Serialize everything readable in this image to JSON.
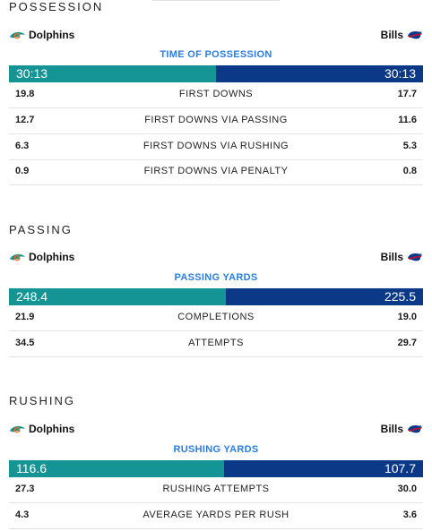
{
  "teams": {
    "left": "Dolphins",
    "right": "Bills"
  },
  "colors": {
    "dolphins": "#149494",
    "bills": "#0b3887",
    "accent": "#2a7ee0"
  },
  "possession": {
    "title": "POSSESSION",
    "metric": {
      "label": "TIME OF POSSESSION",
      "left": "30:13",
      "right": "30:13",
      "left_share": 0.5
    },
    "rows": [
      {
        "label": "FIRST DOWNS",
        "left": "19.8",
        "right": "17.7"
      },
      {
        "label": "FIRST DOWNS VIA PASSING",
        "left": "12.7",
        "right": "11.6"
      },
      {
        "label": "FIRST DOWNS VIA RUSHING",
        "left": "6.3",
        "right": "5.3"
      },
      {
        "label": "FIRST DOWNS VIA PENALTY",
        "left": "0.9",
        "right": "0.8"
      }
    ]
  },
  "passing": {
    "title": "PASSING",
    "metric": {
      "label": "PASSING YARDS",
      "left": "248.4",
      "right": "225.5",
      "left_share": 0.524
    },
    "rows": [
      {
        "label": "COMPLETIONS",
        "left": "21.9",
        "right": "19.0"
      },
      {
        "label": "ATTEMPTS",
        "left": "34.5",
        "right": "29.7"
      }
    ]
  },
  "rushing": {
    "title": "RUSHING",
    "metric": {
      "label": "RUSHING YARDS",
      "left": "116.6",
      "right": "107.7",
      "left_share": 0.52
    },
    "rows": [
      {
        "label": "RUSHING ATTEMPTS",
        "left": "27.3",
        "right": "30.0"
      },
      {
        "label": "AVERAGE YARDS PER RUSH",
        "left": "4.3",
        "right": "3.6"
      }
    ]
  }
}
